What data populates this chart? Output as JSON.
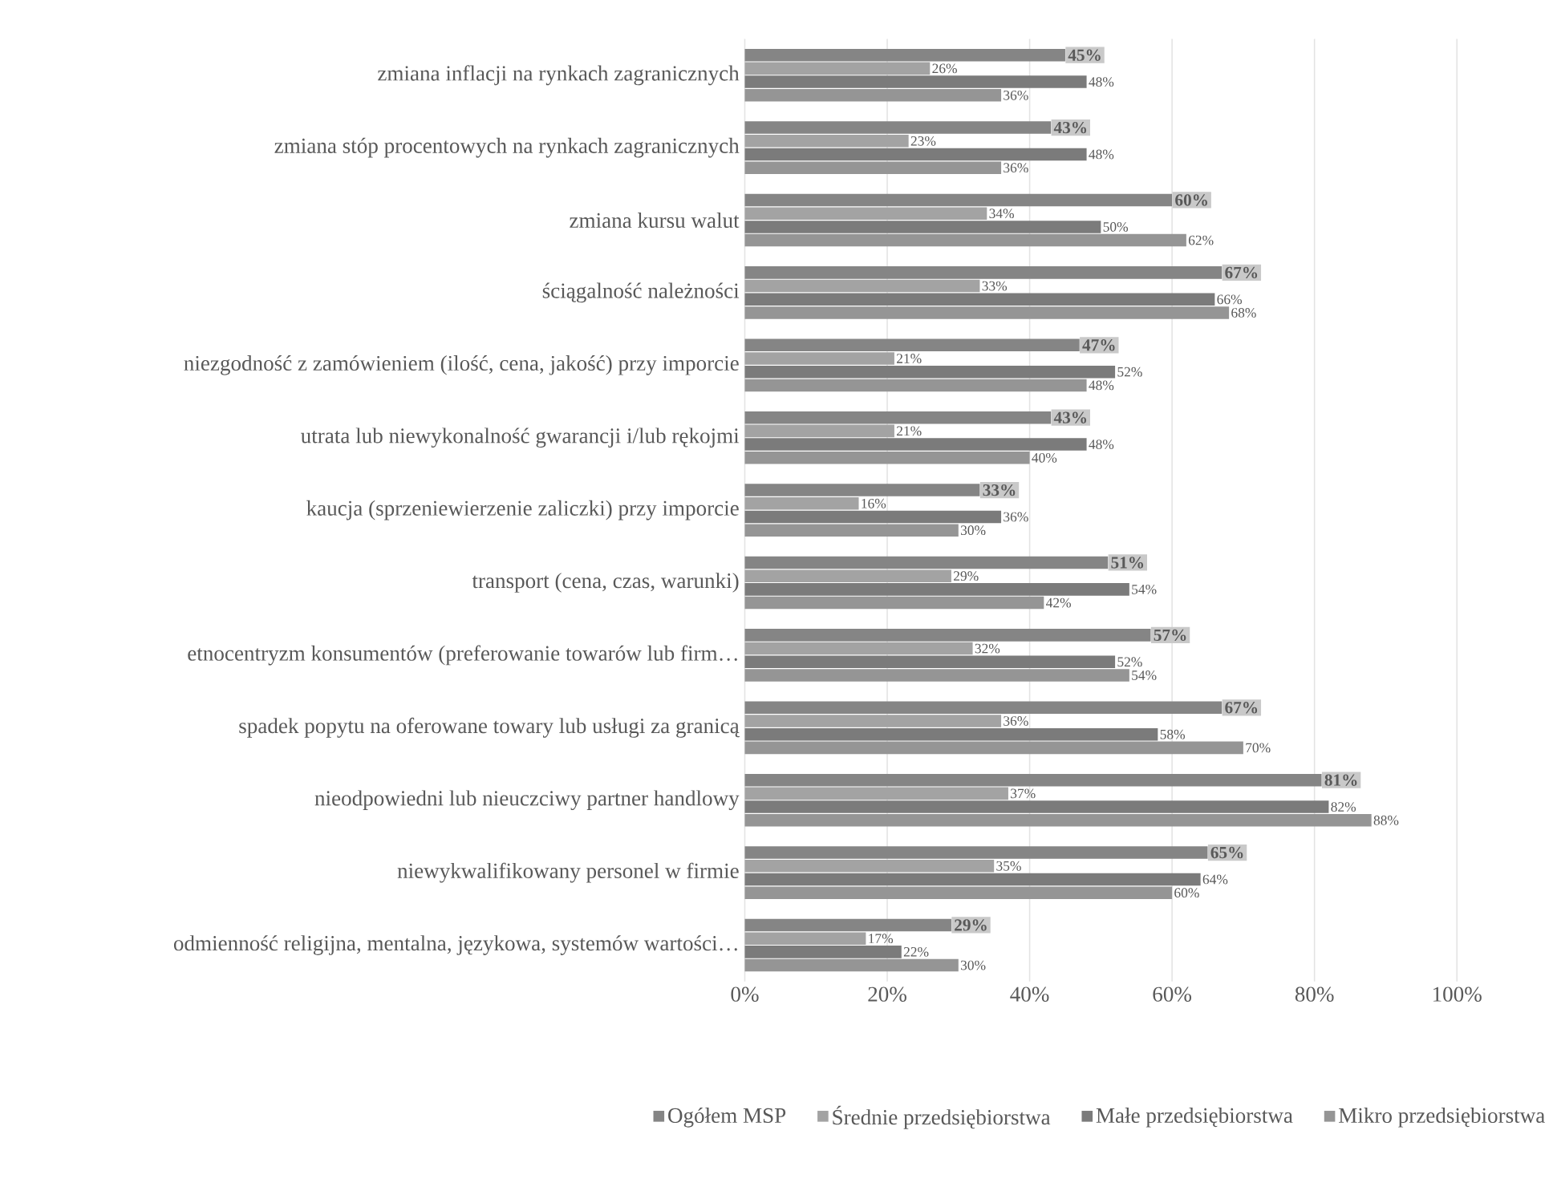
{
  "chart_data": {
    "type": "bar",
    "orientation": "horizontal",
    "categories": [
      "zmiana inflacji na rynkach zagranicznych",
      "zmiana stóp procentowych na rynkach zagranicznych",
      "zmiana kursu walut",
      "ściągalność należności",
      "niezgodność z zamówieniem (ilość, cena, jakość) przy imporcie",
      "utrata lub niewykonalność gwarancji i/lub rękojmi",
      "kaucja (sprzeniewierzenie zaliczki) przy imporcie",
      "transport (cena, czas, warunki)",
      "etnocentryzm konsumentów (preferowanie towarów lub firm…",
      "spadek popytu na oferowane towary lub usługi za granicą",
      "nieodpowiedni lub nieuczciwy partner handlowy",
      "niewykwalifikowany personel w firmie",
      "odmienność religijna, mentalna, językowa, systemów wartości…"
    ],
    "series": [
      {
        "name": "Ogółem MSP",
        "color": "#858585",
        "values": [
          45,
          43,
          60,
          67,
          47,
          43,
          33,
          51,
          57,
          67,
          81,
          65,
          29
        ],
        "value_labels": [
          "45%",
          "43%",
          "60%",
          "67%",
          "47%",
          "43%",
          "33%",
          "51%",
          "57%",
          "67%",
          "81%",
          "65%",
          "29%"
        ]
      },
      {
        "name": "Średnie przedsiębiorstwa",
        "color": "#a3a3a3",
        "values": [
          26,
          23,
          34,
          33,
          21,
          21,
          16,
          29,
          32,
          36,
          37,
          35,
          17
        ],
        "value_labels": [
          "26%",
          "23%",
          "34%",
          "33%",
          "21%",
          "21%",
          "16%",
          "29%",
          "32%",
          "36%",
          "37%",
          "35%",
          "17%"
        ]
      },
      {
        "name": "Małe przedsiębiorstwa",
        "color": "#7b7b7b",
        "values": [
          48,
          48,
          50,
          66,
          52,
          48,
          36,
          54,
          52,
          58,
          82,
          64,
          22
        ],
        "value_labels": [
          "48%",
          "48%",
          "50%",
          "66%",
          "52%",
          "48%",
          "36%",
          "54%",
          "52%",
          "58%",
          "82%",
          "64%",
          "22%"
        ]
      },
      {
        "name": "Mikro przedsiębiorstwa",
        "color": "#959595",
        "values": [
          36,
          36,
          62,
          68,
          48,
          40,
          30,
          42,
          54,
          70,
          88,
          60,
          30
        ],
        "value_labels": [
          "36%",
          "36%",
          "62%",
          "68%",
          "48%",
          "40%",
          "30%",
          "42%",
          "54%",
          "70%",
          "88%",
          "60%",
          "30%"
        ]
      }
    ],
    "xlim": [
      0,
      100
    ],
    "xticks": [
      {
        "value": 0,
        "label": "0%"
      },
      {
        "value": 20,
        "label": "20%"
      },
      {
        "value": 40,
        "label": "40%"
      },
      {
        "value": 60,
        "label": "60%"
      },
      {
        "value": 80,
        "label": "80%"
      },
      {
        "value": 100,
        "label": "100%"
      }
    ],
    "grid": "x",
    "legend": "bottom"
  }
}
